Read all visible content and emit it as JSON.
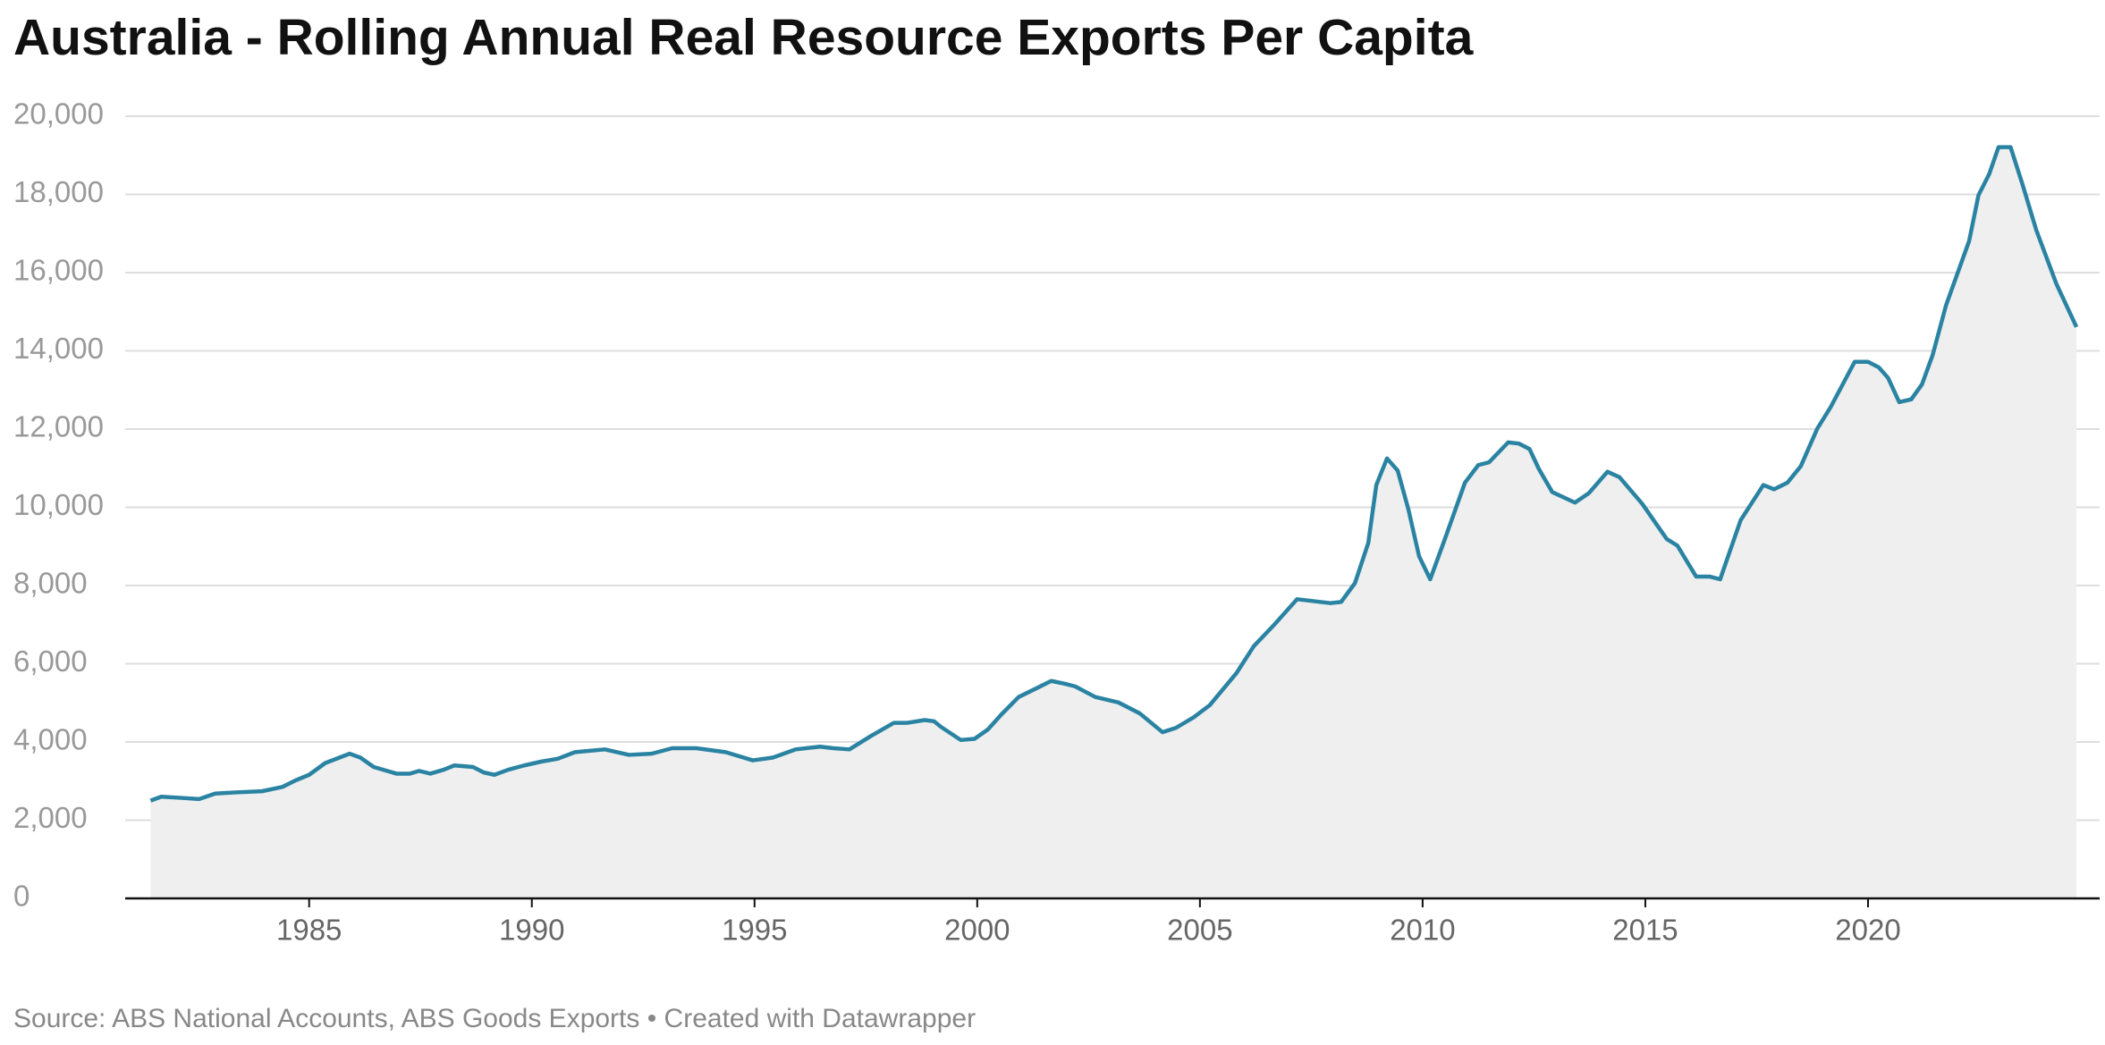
{
  "chart_data": {
    "type": "area-line",
    "title": "Australia - Rolling Annual Real Resource Exports Per Capita",
    "source": "Source: ABS National Accounts, ABS Goods Exports • Created with Datawrapper",
    "x": [
      1981.44,
      1981.68,
      1982.13,
      1982.53,
      1982.89,
      1983.34,
      1983.94,
      1984.4,
      1984.7,
      1985.0,
      1985.36,
      1985.91,
      1986.15,
      1986.45,
      1986.96,
      1987.26,
      1987.47,
      1987.72,
      1988.02,
      1988.26,
      1988.68,
      1988.92,
      1989.16,
      1989.47,
      1989.83,
      1990.22,
      1990.58,
      1990.97,
      1991.64,
      1992.18,
      1992.69,
      1993.15,
      1993.69,
      1994.35,
      1994.96,
      1995.41,
      1995.92,
      1996.47,
      1996.77,
      1997.13,
      1997.61,
      1998.13,
      1998.43,
      1998.82,
      1999.03,
      1999.18,
      1999.63,
      1999.94,
      2000.24,
      2000.54,
      2000.93,
      2001.29,
      2001.66,
      2001.96,
      2002.2,
      2002.65,
      2003.17,
      2003.65,
      2004.16,
      2004.46,
      2004.86,
      2005.22,
      2005.82,
      2006.21,
      2006.67,
      2007.18,
      2007.93,
      2008.17,
      2008.48,
      2008.78,
      2008.96,
      2009.2,
      2009.44,
      2009.68,
      2009.92,
      2010.17,
      2010.5,
      2010.95,
      2011.25,
      2011.49,
      2011.92,
      2012.16,
      2012.4,
      2012.61,
      2012.91,
      2013.42,
      2013.73,
      2014.15,
      2014.42,
      2014.93,
      2015.48,
      2015.72,
      2016.14,
      2016.44,
      2016.68,
      2017.14,
      2017.65,
      2017.89,
      2018.19,
      2018.49,
      2018.86,
      2019.16,
      2019.7,
      2020.0,
      2020.24,
      2020.45,
      2020.7,
      2020.97,
      2021.21,
      2021.45,
      2021.75,
      2022.27,
      2022.48,
      2022.72,
      2022.93,
      2023.2,
      2023.47,
      2023.78,
      2024.23,
      2024.68
    ],
    "series": [
      {
        "name": "Resource exports per capita",
        "color": "#2a83a2",
        "values": [
          2500,
          2600,
          2570,
          2540,
          2680,
          2710,
          2740,
          2850,
          3020,
          3160,
          3460,
          3700,
          3600,
          3360,
          3190,
          3190,
          3260,
          3190,
          3290,
          3400,
          3360,
          3220,
          3160,
          3290,
          3400,
          3500,
          3570,
          3740,
          3810,
          3670,
          3700,
          3840,
          3840,
          3740,
          3530,
          3600,
          3810,
          3880,
          3840,
          3810,
          4150,
          4490,
          4490,
          4560,
          4530,
          4390,
          4050,
          4080,
          4320,
          4700,
          5150,
          5350,
          5560,
          5490,
          5420,
          5150,
          5010,
          4730,
          4250,
          4360,
          4630,
          4940,
          5760,
          6450,
          7000,
          7650,
          7550,
          7580,
          8060,
          9090,
          10570,
          11250,
          10940,
          9950,
          8750,
          8160,
          9190,
          10630,
          11080,
          11150,
          11660,
          11630,
          11490,
          10980,
          10390,
          10120,
          10360,
          10910,
          10770,
          10090,
          9190,
          9020,
          8230,
          8230,
          8160,
          9670,
          10570,
          10460,
          10630,
          11050,
          12010,
          12560,
          13720,
          13720,
          13580,
          13310,
          12690,
          12760,
          13140,
          13890,
          15160,
          16810,
          17980,
          18520,
          19210,
          19210,
          18250,
          17080,
          15710,
          14610
        ]
      }
    ],
    "area_color": "#efefef",
    "xlim": [
      1980.87,
      2025.2
    ],
    "xticks": [
      1985,
      1990,
      1995,
      2000,
      2005,
      2010,
      2015,
      2020
    ],
    "ylim": [
      0,
      20000
    ],
    "yticks": [
      0,
      {
        "value": 2000,
        "label": "2,000"
      },
      {
        "value": 4000,
        "label": "4,000"
      },
      {
        "value": 6000,
        "label": "6,000"
      },
      {
        "value": 8000,
        "label": "8,000"
      },
      {
        "value": 10000,
        "label": "10,000"
      },
      {
        "value": 12000,
        "label": "12,000"
      },
      {
        "value": 14000,
        "label": "14,000"
      },
      {
        "value": 16000,
        "label": "16,000"
      },
      {
        "value": 18000,
        "label": "18,000"
      },
      {
        "value": 20000,
        "label": "20,000"
      }
    ],
    "grid": true
  }
}
